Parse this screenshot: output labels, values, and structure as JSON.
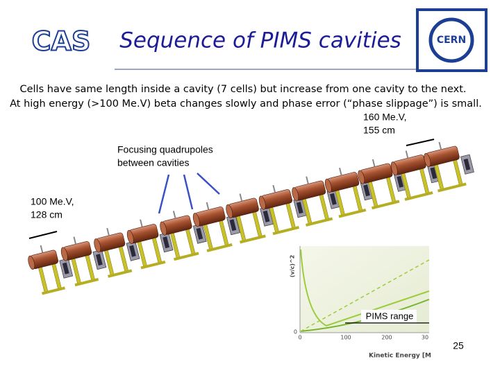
{
  "header": {
    "logo_left": "CAS",
    "title": "Sequence of PIMS cavities",
    "logo_right": "CERN"
  },
  "body": {
    "lines": [
      "Cells have same length inside a cavity (7 cells) but increase from one cavity to the next.",
      "At high energy (>100 Me.V) beta changes slowly and phase error (“phase slippage”) is small."
    ]
  },
  "annotations": {
    "high_end": [
      "160 Me.V,",
      "155 cm"
    ],
    "quadrupoles": [
      "Focusing quadrupoles",
      "between cavities"
    ],
    "low_end": [
      "100 Me.V,",
      "128 cm"
    ]
  },
  "inset_plot": {
    "y_label": "(v/c)^2",
    "x_label": "Kinetic Energy [M",
    "x_ticks": [
      "0",
      "100",
      "200",
      "30"
    ],
    "y_ticks": [
      "0"
    ],
    "range_label": "PIMS range"
  },
  "footer": {
    "page_number": "25"
  }
}
